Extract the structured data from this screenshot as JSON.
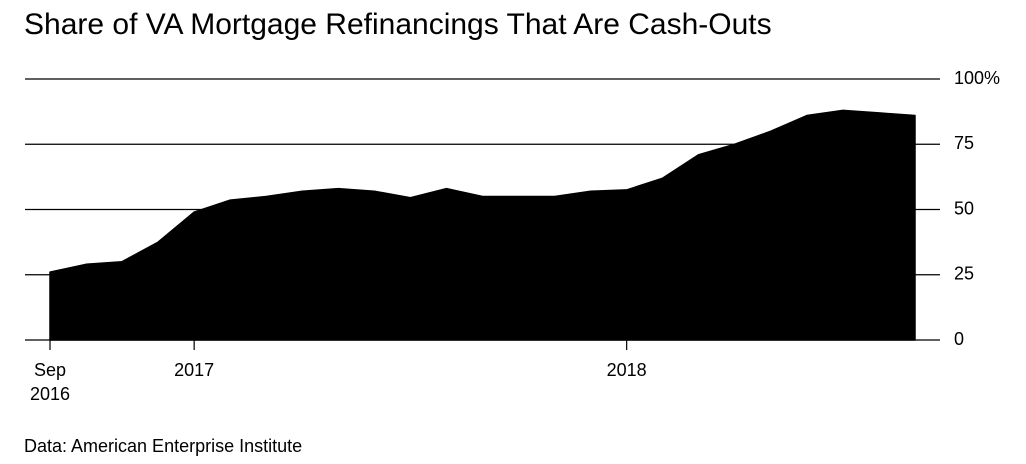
{
  "chart_data": {
    "type": "area",
    "title": "Share of VA Mortgage Refinancings That Are Cash-Outs",
    "source": "Data: American Enterprise Institute",
    "categories": [
      "Sep\n2016",
      null,
      null,
      null,
      "2017",
      null,
      null,
      null,
      null,
      null,
      null,
      null,
      null,
      null,
      null,
      null,
      "2018",
      null,
      null,
      null,
      null,
      null,
      null,
      null,
      null
    ],
    "values": [
      26,
      29,
      30,
      37.5,
      49,
      53.6,
      55,
      57,
      58,
      57,
      54.5,
      58,
      55,
      55,
      55,
      57,
      57.5,
      62,
      71,
      75,
      80,
      86,
      88,
      87,
      86
    ],
    "color": "#000000",
    "ylim": [
      0,
      100
    ],
    "yticks": [
      0,
      25,
      50,
      75,
      {
        "value": 100,
        "label": "100%"
      }
    ],
    "grid": true
  }
}
